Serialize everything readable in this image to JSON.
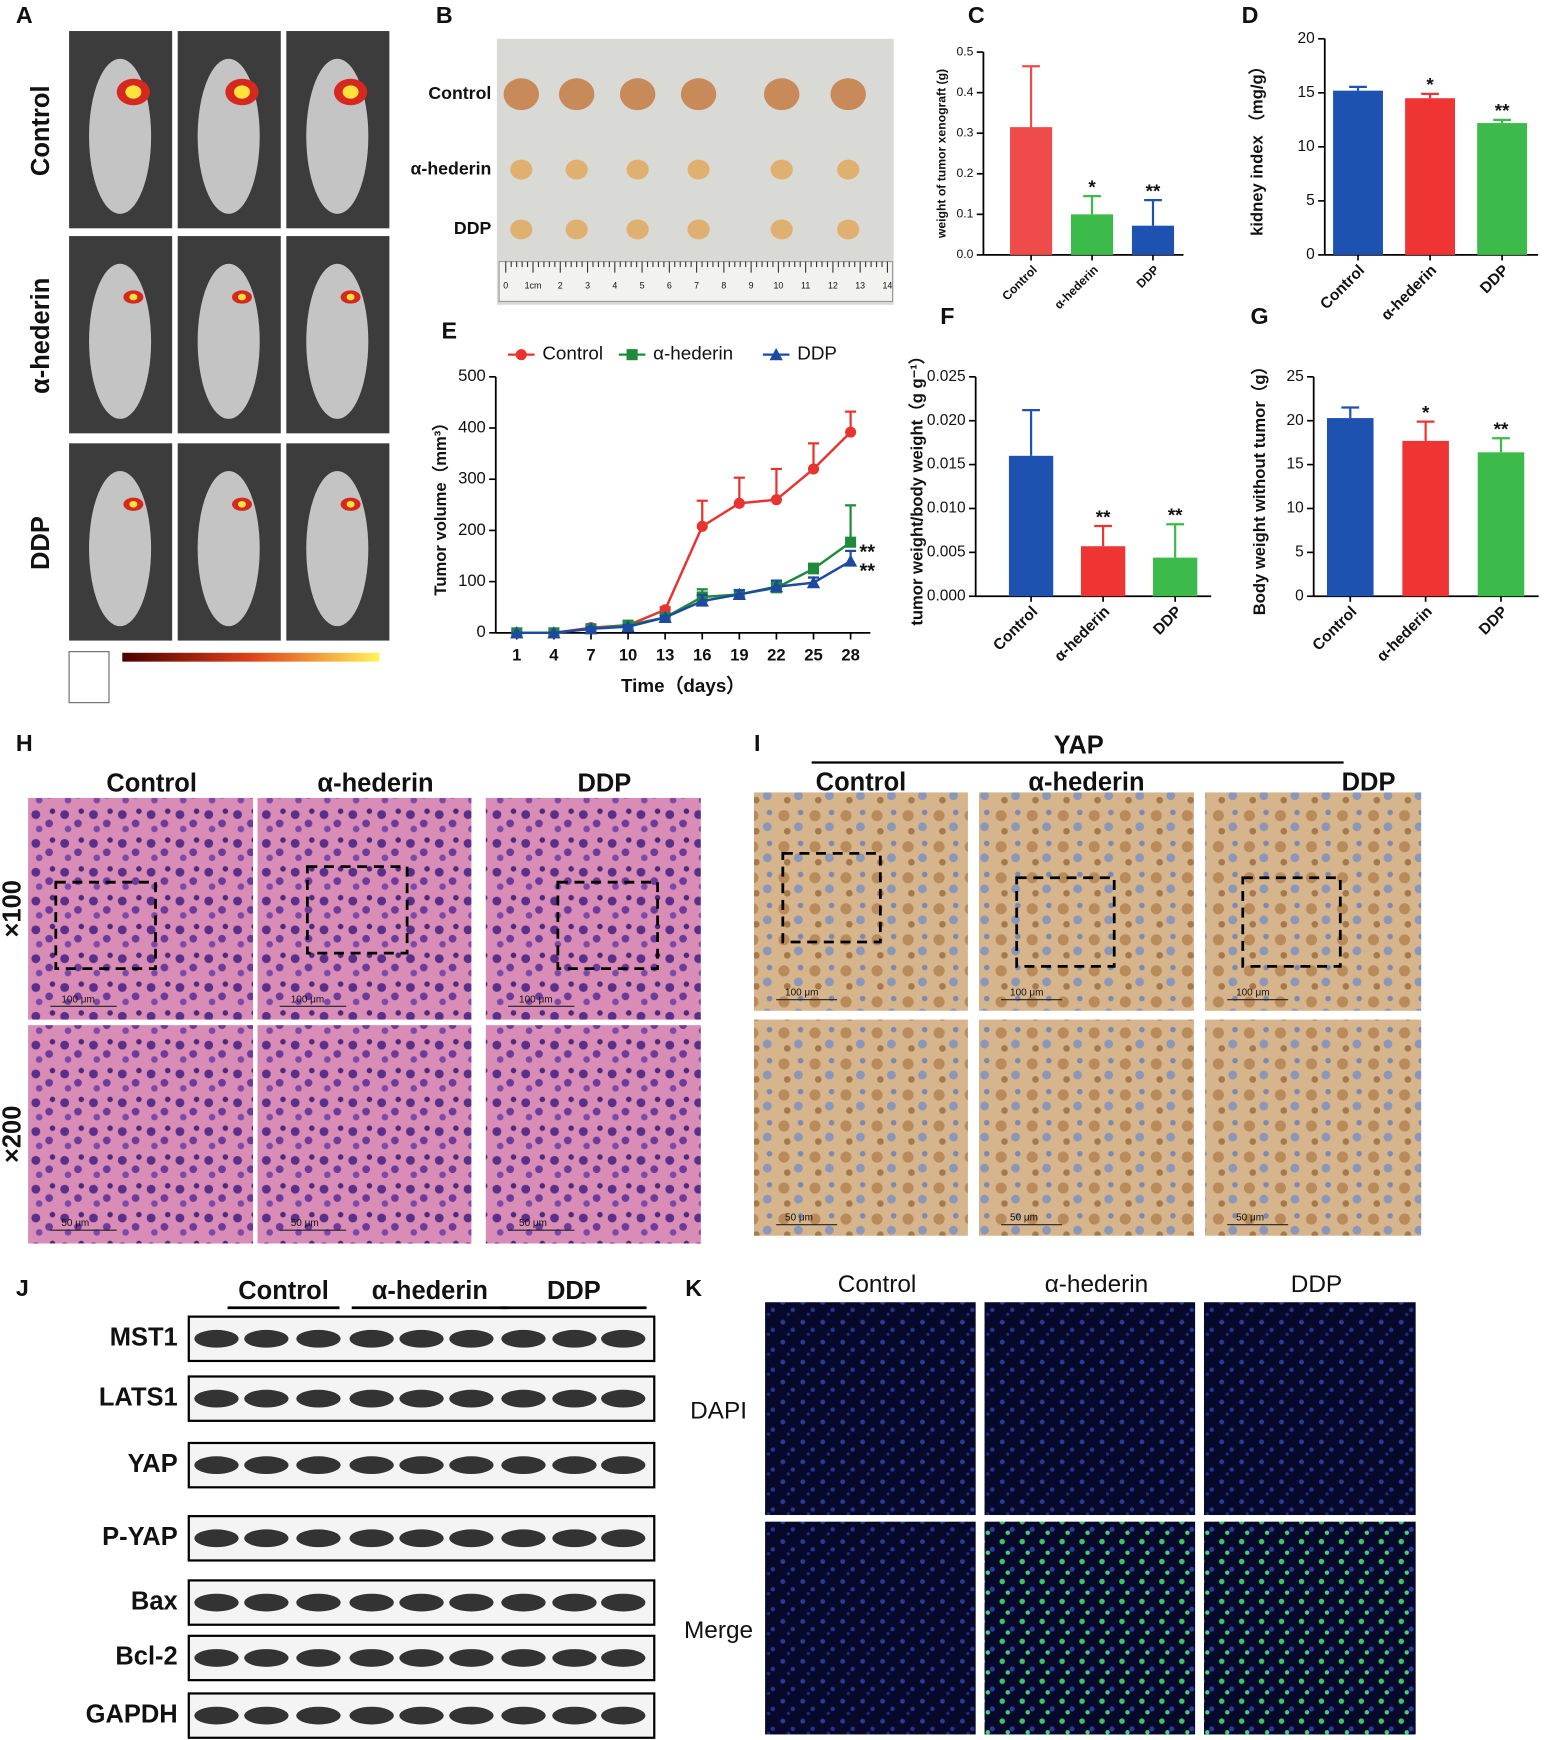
{
  "panel_A": {
    "label": "A",
    "rows": [
      "Control",
      "α-hederin",
      "DDP"
    ]
  },
  "panel_B": {
    "label": "B",
    "rows": [
      "Control",
      "α-hederin",
      "DDP"
    ],
    "ruler": [
      "0",
      "1cm",
      "2",
      "3",
      "4",
      "5",
      "6",
      "7",
      "8",
      "9",
      "10",
      "11",
      "12",
      "13",
      "14"
    ]
  },
  "chart_data": [
    {
      "type": "bar",
      "panel": "C",
      "y_label": "weight of tumor xenograft (g)",
      "categories": [
        "Control",
        "α-hederin",
        "DDP"
      ],
      "values": [
        0.315,
        0.1,
        0.072
      ],
      "errors": [
        0.15,
        0.045,
        0.063
      ],
      "colors": [
        "#ef4b4b",
        "#3dbb4a",
        "#1e52b0"
      ],
      "annotations": [
        null,
        "*",
        "**"
      ],
      "ylim": [
        0,
        0.5
      ],
      "yticks": [
        {
          "value": 0,
          "label": "0.0"
        },
        0.1,
        0.2,
        0.3,
        0.4,
        0.5
      ]
    },
    {
      "type": "bar",
      "panel": "D",
      "y_label": "kidney index （mg/g）",
      "categories": [
        "Control",
        "α-hederin",
        "DDP"
      ],
      "values": [
        15.2,
        14.5,
        12.2
      ],
      "errors": [
        0.35,
        0.4,
        0.3
      ],
      "colors": [
        "#1e52b0",
        "#ef3434",
        "#3dbb4a"
      ],
      "annotations": [
        null,
        "*",
        "**"
      ],
      "ylim": [
        0,
        20
      ],
      "yticks": [
        0,
        5,
        10,
        15,
        20
      ]
    },
    {
      "type": "line",
      "panel": "E",
      "y_label": "Tumor volume（mm³）",
      "x_label": "Time（days）",
      "x": [
        1,
        4,
        7,
        10,
        13,
        16,
        19,
        22,
        25,
        28
      ],
      "series": [
        {
          "name": "Control",
          "color": "#e8332f",
          "marker": "circle",
          "values": [
            0,
            0,
            10,
            15,
            45,
            208,
            253,
            260,
            320,
            392
          ],
          "errors": [
            0,
            0,
            5,
            5,
            5,
            50,
            50,
            60,
            50,
            40
          ],
          "annotation": null
        },
        {
          "name": "α-hederin",
          "color": "#1f8a3b",
          "marker": "square",
          "values": [
            0,
            0,
            8,
            15,
            30,
            70,
            75,
            88,
            125,
            177
          ],
          "errors": [
            0,
            0,
            3,
            3,
            3,
            15,
            8,
            10,
            10,
            72
          ],
          "annotation": "**"
        },
        {
          "name": "DDP",
          "color": "#1d4aa0",
          "marker": "triangle",
          "values": [
            0,
            0,
            8,
            12,
            30,
            62,
            75,
            90,
            98,
            140
          ],
          "errors": [
            0,
            0,
            3,
            3,
            3,
            12,
            8,
            12,
            10,
            20
          ],
          "annotation": "**"
        }
      ],
      "xlim": [
        -0.7,
        29.6
      ],
      "xticks": [
        1,
        4,
        7,
        10,
        13,
        16,
        19,
        22,
        25,
        28
      ],
      "ylim": [
        0,
        500
      ],
      "yticks": [
        0,
        100,
        200,
        300,
        400,
        500
      ]
    },
    {
      "type": "bar",
      "panel": "F",
      "y_label": "tumor weight/body weight（g g⁻¹）",
      "categories": [
        "Control",
        "α-hederin",
        "DDP"
      ],
      "values": [
        0.016,
        0.0057,
        0.0044
      ],
      "errors": [
        0.0052,
        0.0023,
        0.0038
      ],
      "colors": [
        "#1e52b0",
        "#ef3434",
        "#3dbb4a"
      ],
      "annotations": [
        null,
        "**",
        "**"
      ],
      "ylim": [
        0,
        0.025
      ],
      "yticks": [
        {
          "value": 0,
          "label": "0.000"
        },
        0.005,
        {
          "value": 0.01,
          "label": "0.010"
        },
        0.015,
        {
          "value": 0.02,
          "label": "0.020"
        },
        0.025
      ]
    },
    {
      "type": "bar",
      "panel": "G",
      "y_label": "Body weight without tumor（g）",
      "categories": [
        "Control",
        "α-hederin",
        "DDP"
      ],
      "values": [
        20.3,
        17.7,
        16.4
      ],
      "errors": [
        1.2,
        2.2,
        1.6
      ],
      "colors": [
        "#1e52b0",
        "#ef3434",
        "#3dbb4a"
      ],
      "annotations": [
        null,
        "*",
        "**"
      ],
      "ylim": [
        0,
        25
      ],
      "yticks": [
        0,
        5,
        10,
        15,
        20,
        25
      ]
    }
  ],
  "panel_H": {
    "label": "H",
    "columns": [
      "Control",
      "α-hederin",
      "DDP"
    ],
    "rows": [
      "×100",
      "×200"
    ],
    "scale_bars": [
      "100 μm",
      "100 μm",
      "100 μm",
      "50 μm",
      "50 μm",
      "50 μm"
    ]
  },
  "panel_I": {
    "label": "I",
    "title": "YAP",
    "columns": [
      "Control",
      "α-hederin",
      "DDP"
    ],
    "scale_bars": [
      "100 μm",
      "100 μm",
      "100 μm",
      "50 μm",
      "50 μm",
      "50 μm"
    ]
  },
  "panel_J": {
    "label": "J",
    "groups": [
      "Control",
      "α-hederin",
      "DDP"
    ],
    "proteins": [
      "MST1",
      "LATS1",
      "YAP",
      "P-YAP",
      "Bax",
      "Bcl-2",
      "GAPDH"
    ]
  },
  "panel_K": {
    "label": "K",
    "columns": [
      "Control",
      "α-hederin",
      "DDP"
    ],
    "rows": [
      "DAPI",
      "Merge"
    ]
  }
}
